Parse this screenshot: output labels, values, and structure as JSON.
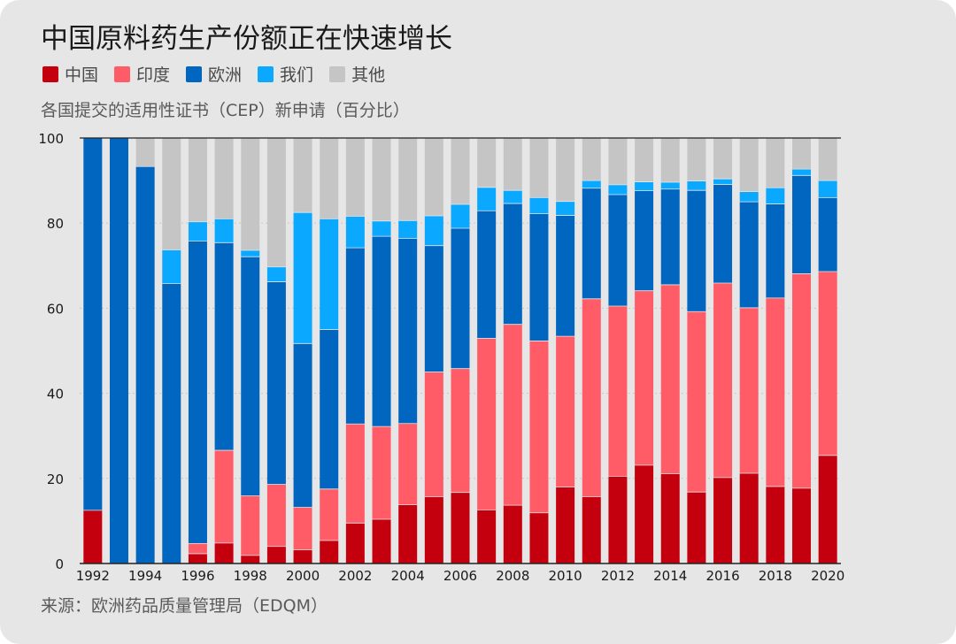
{
  "chart_data": {
    "type": "bar",
    "stacked": true,
    "title": "中国原料药生产份额正在快速增长",
    "subtitle": "各国提交的适用性证书（CEP）新申请（百分比）",
    "source": "来源：欧洲药品质量管理局（EDQM）",
    "ylim": [
      0,
      100
    ],
    "yticks": [
      0,
      20,
      40,
      60,
      80,
      100
    ],
    "grid": true,
    "legend_position": "top-left",
    "x_tick_labels": [
      "1992",
      "1994",
      "1996",
      "1998",
      "2000",
      "2002",
      "2004",
      "2006",
      "2008",
      "2010",
      "2012",
      "2014",
      "2016",
      "2018",
      "2020"
    ],
    "categories": [
      "1992",
      "1993",
      "1994",
      "1995",
      "1996",
      "1997",
      "1998",
      "1999",
      "2000",
      "2001",
      "2002",
      "2003",
      "2004",
      "2005",
      "2006",
      "2007",
      "2008",
      "2009",
      "2010",
      "2011",
      "2012",
      "2013",
      "2014",
      "2015",
      "2016",
      "2017",
      "2018",
      "2019",
      "2020"
    ],
    "series": [
      {
        "name": "中国",
        "color": "#c4000e",
        "values": [
          12.5,
          0,
          0,
          0,
          2.3,
          4.8,
          1.9,
          4.0,
          3.2,
          5.4,
          9.5,
          10.4,
          13.8,
          15.7,
          16.7,
          12.6,
          13.7,
          11.9,
          18.0,
          15.7,
          20.5,
          23.1,
          21.1,
          16.8,
          20.2,
          21.2,
          18.1,
          17.7,
          25.4
        ]
      },
      {
        "name": "印度",
        "color": "#ff5c68",
        "values": [
          0,
          0,
          0,
          0,
          2.4,
          21.8,
          14.0,
          14.6,
          10.0,
          12.1,
          23.3,
          21.8,
          19.1,
          29.3,
          29.1,
          40.3,
          42.5,
          40.4,
          35.4,
          46.5,
          40.0,
          41.0,
          44.4,
          42.4,
          45.7,
          38.9,
          44.3,
          50.4,
          43.2
        ]
      },
      {
        "name": "欧洲",
        "color": "#0066bf",
        "values": [
          87.5,
          100,
          93.3,
          65.8,
          71.1,
          48.8,
          56.2,
          47.6,
          38.5,
          37.5,
          41.4,
          44.7,
          43.5,
          29.7,
          33.0,
          30.0,
          28.4,
          29.9,
          28.4,
          26.0,
          26.2,
          23.5,
          22.5,
          28.5,
          23.2,
          24.9,
          22.1,
          23.1,
          17.4
        ]
      },
      {
        "name": "我们",
        "color": "#0aa8ff",
        "values": [
          0,
          0,
          0,
          7.9,
          4.5,
          5.6,
          1.5,
          3.5,
          30.8,
          26.0,
          7.4,
          3.6,
          4.2,
          7.0,
          5.6,
          5.5,
          3.1,
          3.8,
          3.3,
          1.8,
          2.3,
          2.1,
          1.6,
          2.2,
          1.3,
          2.4,
          3.8,
          1.5,
          4.0
        ]
      },
      {
        "name": "其他",
        "color": "#c5c5c5",
        "values": [
          0,
          0,
          6.7,
          26.3,
          19.7,
          19.0,
          26.4,
          30.3,
          17.5,
          19.0,
          18.4,
          19.5,
          19.4,
          18.3,
          15.6,
          11.6,
          12.3,
          14.0,
          14.9,
          10.0,
          11.0,
          10.3,
          10.4,
          10.1,
          9.6,
          12.6,
          11.7,
          7.3,
          10.0
        ]
      }
    ]
  }
}
